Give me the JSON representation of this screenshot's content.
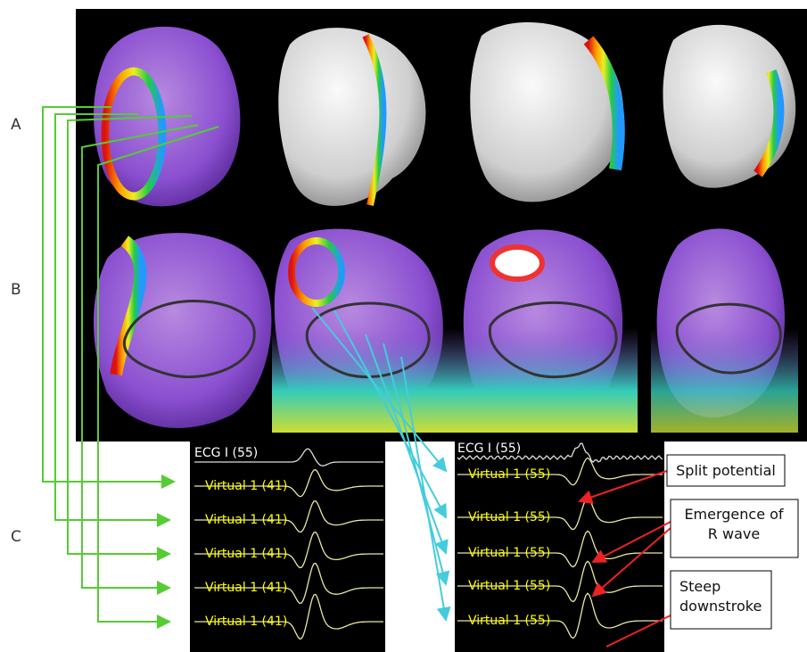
{
  "row_labels": [
    "A",
    "B",
    "C"
  ],
  "ecg_panels": [
    {
      "reference": "ECG I (55)",
      "virtual": [
        "Virtual 1 (41)",
        "Virtual 1 (41)",
        "Virtual 1 (41)",
        "Virtual 1 (41)",
        "Virtual 1 (41)"
      ]
    },
    {
      "reference": "ECG I (55)",
      "virtual": [
        "Virtual 1 (55)",
        "Virtual 1 (55)",
        "Virtual 1 (55)",
        "Virtual 1 (55)",
        "Virtual 1 (55)"
      ]
    }
  ],
  "annotations": [
    {
      "lines": [
        "Split potential"
      ]
    },
    {
      "lines": [
        "Emergence of",
        "R wave"
      ]
    },
    {
      "lines": [
        "Steep",
        "downstroke"
      ]
    }
  ]
}
